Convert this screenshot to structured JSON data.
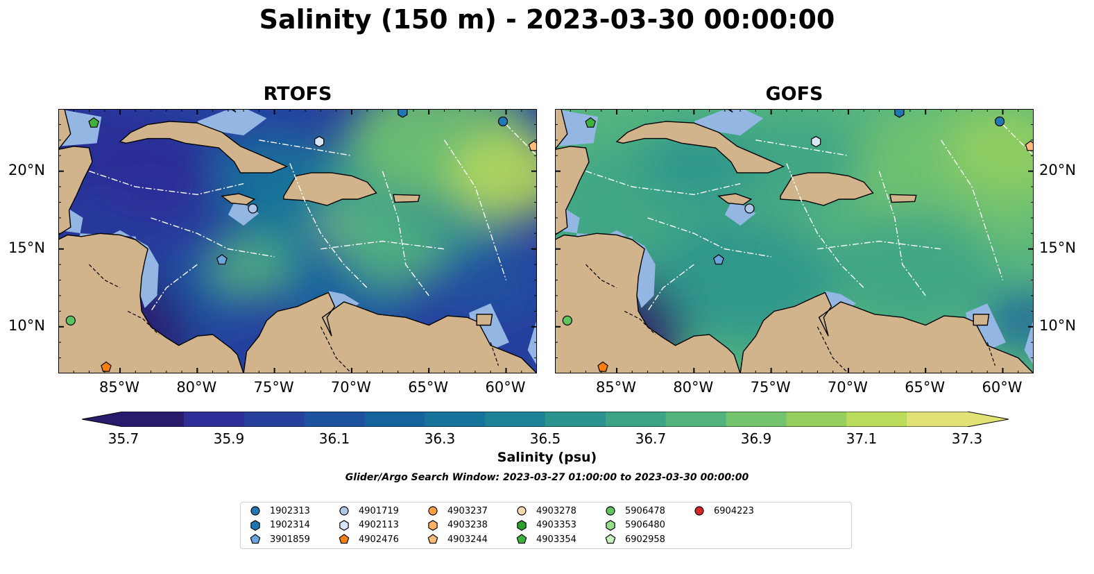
{
  "title": "Salinity (150 m) - 2023-03-30 00:00:00",
  "panels": [
    {
      "title": "RTOFS",
      "model": "rtofs"
    },
    {
      "title": "GOFS",
      "model": "gofs"
    }
  ],
  "map_extent": {
    "lon": [
      -89,
      -58
    ],
    "lat": [
      7,
      24
    ]
  },
  "lon_ticks": [
    "85°W",
    "80°W",
    "75°W",
    "70°W",
    "65°W",
    "60°W"
  ],
  "lon_tick_values": [
    -85,
    -80,
    -75,
    -70,
    -65,
    -60
  ],
  "lat_ticks": [
    "20°N",
    "15°N",
    "10°N"
  ],
  "lat_tick_values": [
    20,
    15,
    10
  ],
  "colorbar": {
    "label": "Salinity (psu)",
    "ticks": [
      "35.7",
      "35.9",
      "36.1",
      "36.3",
      "36.5",
      "36.7",
      "36.9",
      "37.1",
      "37.3"
    ],
    "min": 35.7,
    "max": 37.3,
    "extend": "both",
    "colors": [
      "#2a1a6b",
      "#2c2d96",
      "#26409e",
      "#1d52a0",
      "#16639d",
      "#16739a",
      "#1e8495",
      "#2b948e",
      "#3da586",
      "#55b47e",
      "#73c36f",
      "#95cf60",
      "#bbdb5b",
      "#e0e276"
    ]
  },
  "window_text": "Glider/Argo Search Window: 2023-03-27 01:00:00 to 2023-03-30 00:00:00",
  "colors": {
    "land": "#d2b48c",
    "shelf": "#94b6e3",
    "outline": "#000000"
  },
  "legend": [
    {
      "id": "1902313",
      "marker": "circle",
      "color": "#1f77b4"
    },
    {
      "id": "1902314",
      "marker": "hexagon",
      "color": "#1f77b4"
    },
    {
      "id": "3901859",
      "marker": "pentagon",
      "color": "#6aa6dc"
    },
    {
      "id": "4901719",
      "marker": "circle",
      "color": "#aec7e8"
    },
    {
      "id": "4902113",
      "marker": "hexagon",
      "color": "#d6e6f7"
    },
    {
      "id": "4902476",
      "marker": "pentagon",
      "color": "#ff7f0e"
    },
    {
      "id": "4903237",
      "marker": "circle",
      "color": "#ff9f40"
    },
    {
      "id": "4903238",
      "marker": "hexagon",
      "color": "#ffb062"
    },
    {
      "id": "4903244",
      "marker": "pentagon",
      "color": "#ffbb78"
    },
    {
      "id": "4903278",
      "marker": "circle",
      "color": "#ffd8b0"
    },
    {
      "id": "4903353",
      "marker": "hexagon",
      "color": "#2ca02c"
    },
    {
      "id": "4903354",
      "marker": "pentagon",
      "color": "#3cb33c"
    },
    {
      "id": "5906478",
      "marker": "circle",
      "color": "#5fc35f"
    },
    {
      "id": "5906480",
      "marker": "hexagon",
      "color": "#98df8a"
    },
    {
      "id": "6902958",
      "marker": "pentagon",
      "color": "#c8f0c0"
    },
    {
      "id": "6904223",
      "marker": "circle",
      "color": "#d62728"
    }
  ],
  "floats": [
    {
      "id": "4903354",
      "lon": -86.7,
      "lat": 23.1
    },
    {
      "id": "1902313",
      "lon": -60.2,
      "lat": 23.2
    },
    {
      "id": "4902113",
      "lon": -72.1,
      "lat": 21.9
    },
    {
      "id": "4901719",
      "lon": -76.4,
      "lat": 17.6
    },
    {
      "id": "3901859",
      "lon": -78.4,
      "lat": 14.3
    },
    {
      "id": "5906478",
      "lon": -88.2,
      "lat": 10.4
    },
    {
      "id": "4902476",
      "lon": -85.9,
      "lat": 7.4
    },
    {
      "id": "4903244",
      "lon": -58.2,
      "lat": 21.6
    },
    {
      "id": "1902314",
      "lon": -66.7,
      "lat": 23.8
    }
  ]
}
